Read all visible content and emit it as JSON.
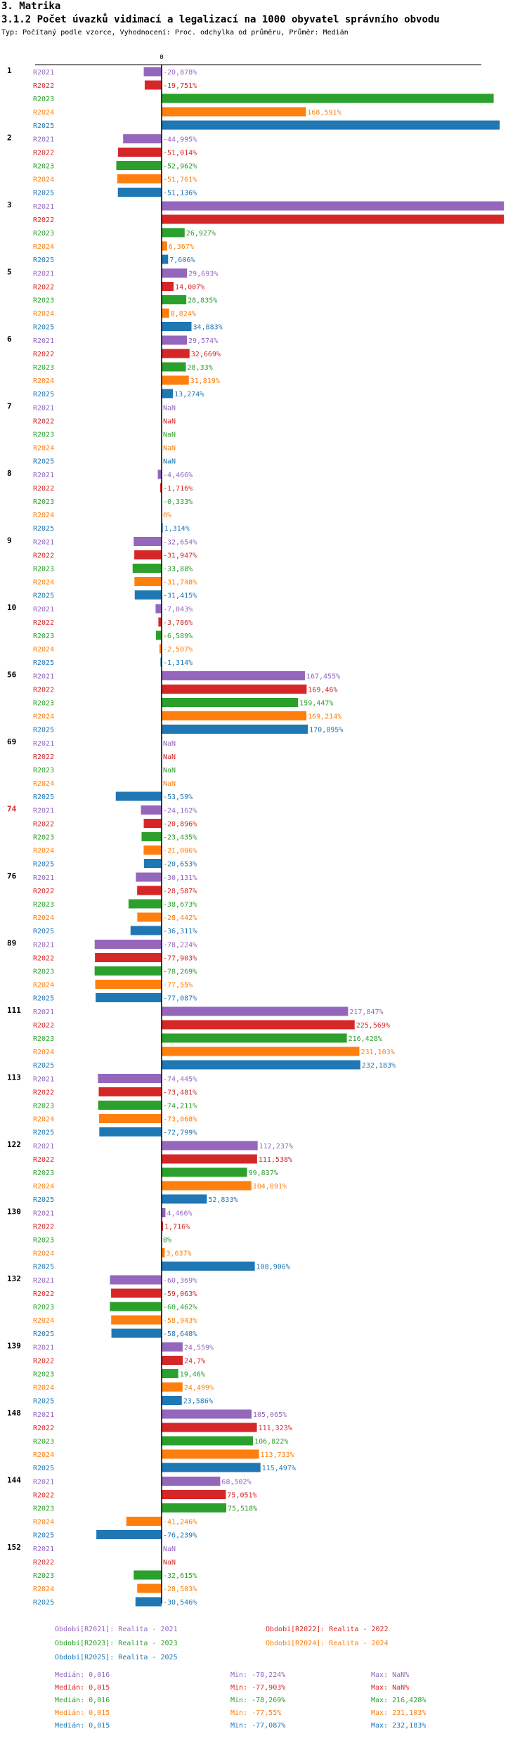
{
  "header": {
    "section": "3. Matrika",
    "title": "3.1.2 Počet úvazků vidimací a legalizací na 1000 obyvatel správního obvodu",
    "subtitle": "Typ: Počítaný podle vzorce, Vyhodnocení: Proc. odchylka od průměru, Průměr: Medián"
  },
  "colors": {
    "R2021": "#9467bd",
    "R2022": "#d62728",
    "R2023": "#2ca02c",
    "R2024": "#ff7f0e",
    "R2025": "#1f77b4",
    "highlight_group": "#d62728"
  },
  "chart_data": {
    "type": "bar",
    "orientation": "horizontal",
    "axis_zero_label": "0",
    "series_names": [
      "R2021",
      "R2022",
      "R2023",
      "R2024",
      "R2025"
    ],
    "groups": [
      {
        "id": "1",
        "highlight": false,
        "values": [
          -20.878,
          -19.751,
          388.0,
          168.591,
          395.0
        ],
        "labels": [
          "-20,878%",
          "-19,751%",
          "",
          "168,591%",
          ""
        ]
      },
      {
        "id": "2",
        "highlight": false,
        "values": [
          -44.995,
          -51.014,
          -52.962,
          -51.761,
          -51.136
        ],
        "labels": [
          "-44,995%",
          "-51,014%",
          "-52,962%",
          "-51,761%",
          "-51,136%"
        ]
      },
      {
        "id": "3",
        "highlight": false,
        "values": [
          400.0,
          400.0,
          26.927,
          6.367,
          7.606
        ],
        "labels": [
          "",
          "",
          "26,927%",
          "6,367%",
          "7,606%"
        ]
      },
      {
        "id": "5",
        "highlight": false,
        "values": [
          29.693,
          14.007,
          28.835,
          8.824,
          34.883
        ],
        "labels": [
          "29,693%",
          "14,007%",
          "28,835%",
          "8,824%",
          "34,883%"
        ]
      },
      {
        "id": "6",
        "highlight": false,
        "values": [
          29.574,
          32.669,
          28.33,
          31.819,
          13.274
        ],
        "labels": [
          "29,574%",
          "32,669%",
          "28,33%",
          "31,819%",
          "13,274%"
        ]
      },
      {
        "id": "7",
        "highlight": false,
        "values": [
          null,
          null,
          null,
          null,
          null
        ],
        "labels": [
          "NaN",
          "NaN",
          "NaN",
          "NaN",
          "NaN"
        ]
      },
      {
        "id": "8",
        "highlight": false,
        "values": [
          -4.466,
          -1.716,
          -0.333,
          0,
          1.314
        ],
        "labels": [
          "-4,466%",
          "-1,716%",
          "-0,333%",
          "0%",
          "1,314%"
        ]
      },
      {
        "id": "9",
        "highlight": false,
        "values": [
          -32.654,
          -31.947,
          -33.88,
          -31.748,
          -31.415
        ],
        "labels": [
          "-32,654%",
          "-31,947%",
          "-33,88%",
          "-31,748%",
          "-31,415%"
        ]
      },
      {
        "id": "10",
        "highlight": false,
        "values": [
          -7.043,
          -3.786,
          -6.589,
          -2.507,
          -1.314
        ],
        "labels": [
          "-7,043%",
          "-3,786%",
          "-6,589%",
          "-2,507%",
          "-1,314%"
        ]
      },
      {
        "id": "56",
        "highlight": false,
        "values": [
          167.455,
          169.46,
          159.447,
          169.214,
          170.895
        ],
        "labels": [
          "167,455%",
          "169,46%",
          "159,447%",
          "169,214%",
          "170,895%"
        ]
      },
      {
        "id": "69",
        "highlight": false,
        "values": [
          null,
          null,
          null,
          null,
          -53.59
        ],
        "labels": [
          "NaN",
          "NaN",
          "NaN",
          "NaN",
          "-53,59%"
        ]
      },
      {
        "id": "74",
        "highlight": true,
        "values": [
          -24.162,
          -20.896,
          -23.435,
          -21.006,
          -20.653
        ],
        "labels": [
          "-24,162%",
          "-20,896%",
          "-23,435%",
          "-21,006%",
          "-20,653%"
        ]
      },
      {
        "id": "76",
        "highlight": false,
        "values": [
          -30.131,
          -28.587,
          -38.673,
          -28.442,
          -36.311
        ],
        "labels": [
          "-30,131%",
          "-28,587%",
          "-38,673%",
          "-28,442%",
          "-36,311%"
        ]
      },
      {
        "id": "89",
        "highlight": false,
        "values": [
          -78.224,
          -77.903,
          -78.269,
          -77.55,
          -77.087
        ],
        "labels": [
          "-78,224%",
          "-77,903%",
          "-78,269%",
          "-77,55%",
          "-77,087%"
        ]
      },
      {
        "id": "111",
        "highlight": false,
        "values": [
          217.847,
          225.569,
          216.428,
          231.103,
          232.183
        ],
        "labels": [
          "217,847%",
          "225,569%",
          "216,428%",
          "231,103%",
          "232,183%"
        ]
      },
      {
        "id": "113",
        "highlight": false,
        "values": [
          -74.445,
          -73.481,
          -74.211,
          -73.068,
          -72.799
        ],
        "labels": [
          "-74,445%",
          "-73,481%",
          "-74,211%",
          "-73,068%",
          "-72,799%"
        ]
      },
      {
        "id": "122",
        "highlight": false,
        "values": [
          112.237,
          111.538,
          99.837,
          104.891,
          52.833
        ],
        "labels": [
          "112,237%",
          "111,538%",
          "99,837%",
          "104,891%",
          "52,833%"
        ]
      },
      {
        "id": "130",
        "highlight": false,
        "values": [
          4.466,
          1.716,
          0,
          3.637,
          108.906
        ],
        "labels": [
          "4,466%",
          "1,716%",
          "0%",
          "3,637%",
          "108,906%"
        ]
      },
      {
        "id": "132",
        "highlight": false,
        "values": [
          -60.369,
          -59.063,
          -60.462,
          -58.943,
          -58.648
        ],
        "labels": [
          "-60,369%",
          "-59,063%",
          "-60,462%",
          "-58,943%",
          "-58,648%"
        ]
      },
      {
        "id": "139",
        "highlight": false,
        "values": [
          24.559,
          24.7,
          19.46,
          24.499,
          23.586
        ],
        "labels": [
          "24,559%",
          "24,7%",
          "19,46%",
          "24,499%",
          "23,586%"
        ]
      },
      {
        "id": "148",
        "highlight": false,
        "values": [
          105.065,
          111.323,
          106.822,
          113.733,
          115.497
        ],
        "labels": [
          "105,065%",
          "111,323%",
          "106,822%",
          "113,733%",
          "115,497%"
        ]
      },
      {
        "id": "144",
        "highlight": false,
        "values": [
          68.502,
          75.051,
          75.518,
          -41.246,
          -76.239
        ],
        "labels": [
          "68,502%",
          "75,051%",
          "75,518%",
          "-41,246%",
          "-76,239%"
        ]
      },
      {
        "id": "152",
        "highlight": false,
        "values": [
          null,
          null,
          -32.615,
          -28.503,
          -30.546
        ],
        "labels": [
          "NaN",
          "NaN",
          "-32,615%",
          "-28,503%",
          "-30,546%"
        ]
      }
    ]
  },
  "legend": {
    "periods": [
      {
        "series": "R2021",
        "text": "Období[R2021]: Realita - 2021"
      },
      {
        "series": "R2022",
        "text": "Období[R2022]: Realita - 2022"
      },
      {
        "series": "R2023",
        "text": "Období[R2023]: Realita - 2023"
      },
      {
        "series": "R2024",
        "text": "Období[R2024]: Realita - 2024"
      },
      {
        "series": "R2025",
        "text": "Období[R2025]: Realita - 2025"
      }
    ],
    "stats": [
      {
        "series": "R2021",
        "median": "Medián: 0,016",
        "min": "Min: -78,224%",
        "max": "Max: NaN%"
      },
      {
        "series": "R2022",
        "median": "Medián: 0,015",
        "min": "Min: -77,903%",
        "max": "Max: NaN%"
      },
      {
        "series": "R2023",
        "median": "Medián: 0,016",
        "min": "Min: -78,269%",
        "max": "Max: 216,428%"
      },
      {
        "series": "R2024",
        "median": "Medián: 0,015",
        "min": "Min: -77,55%",
        "max": "Max: 231,103%"
      },
      {
        "series": "R2025",
        "median": "Medián: 0,015",
        "min": "Min: -77,087%",
        "max": "Max: 232,183%"
      }
    ]
  }
}
